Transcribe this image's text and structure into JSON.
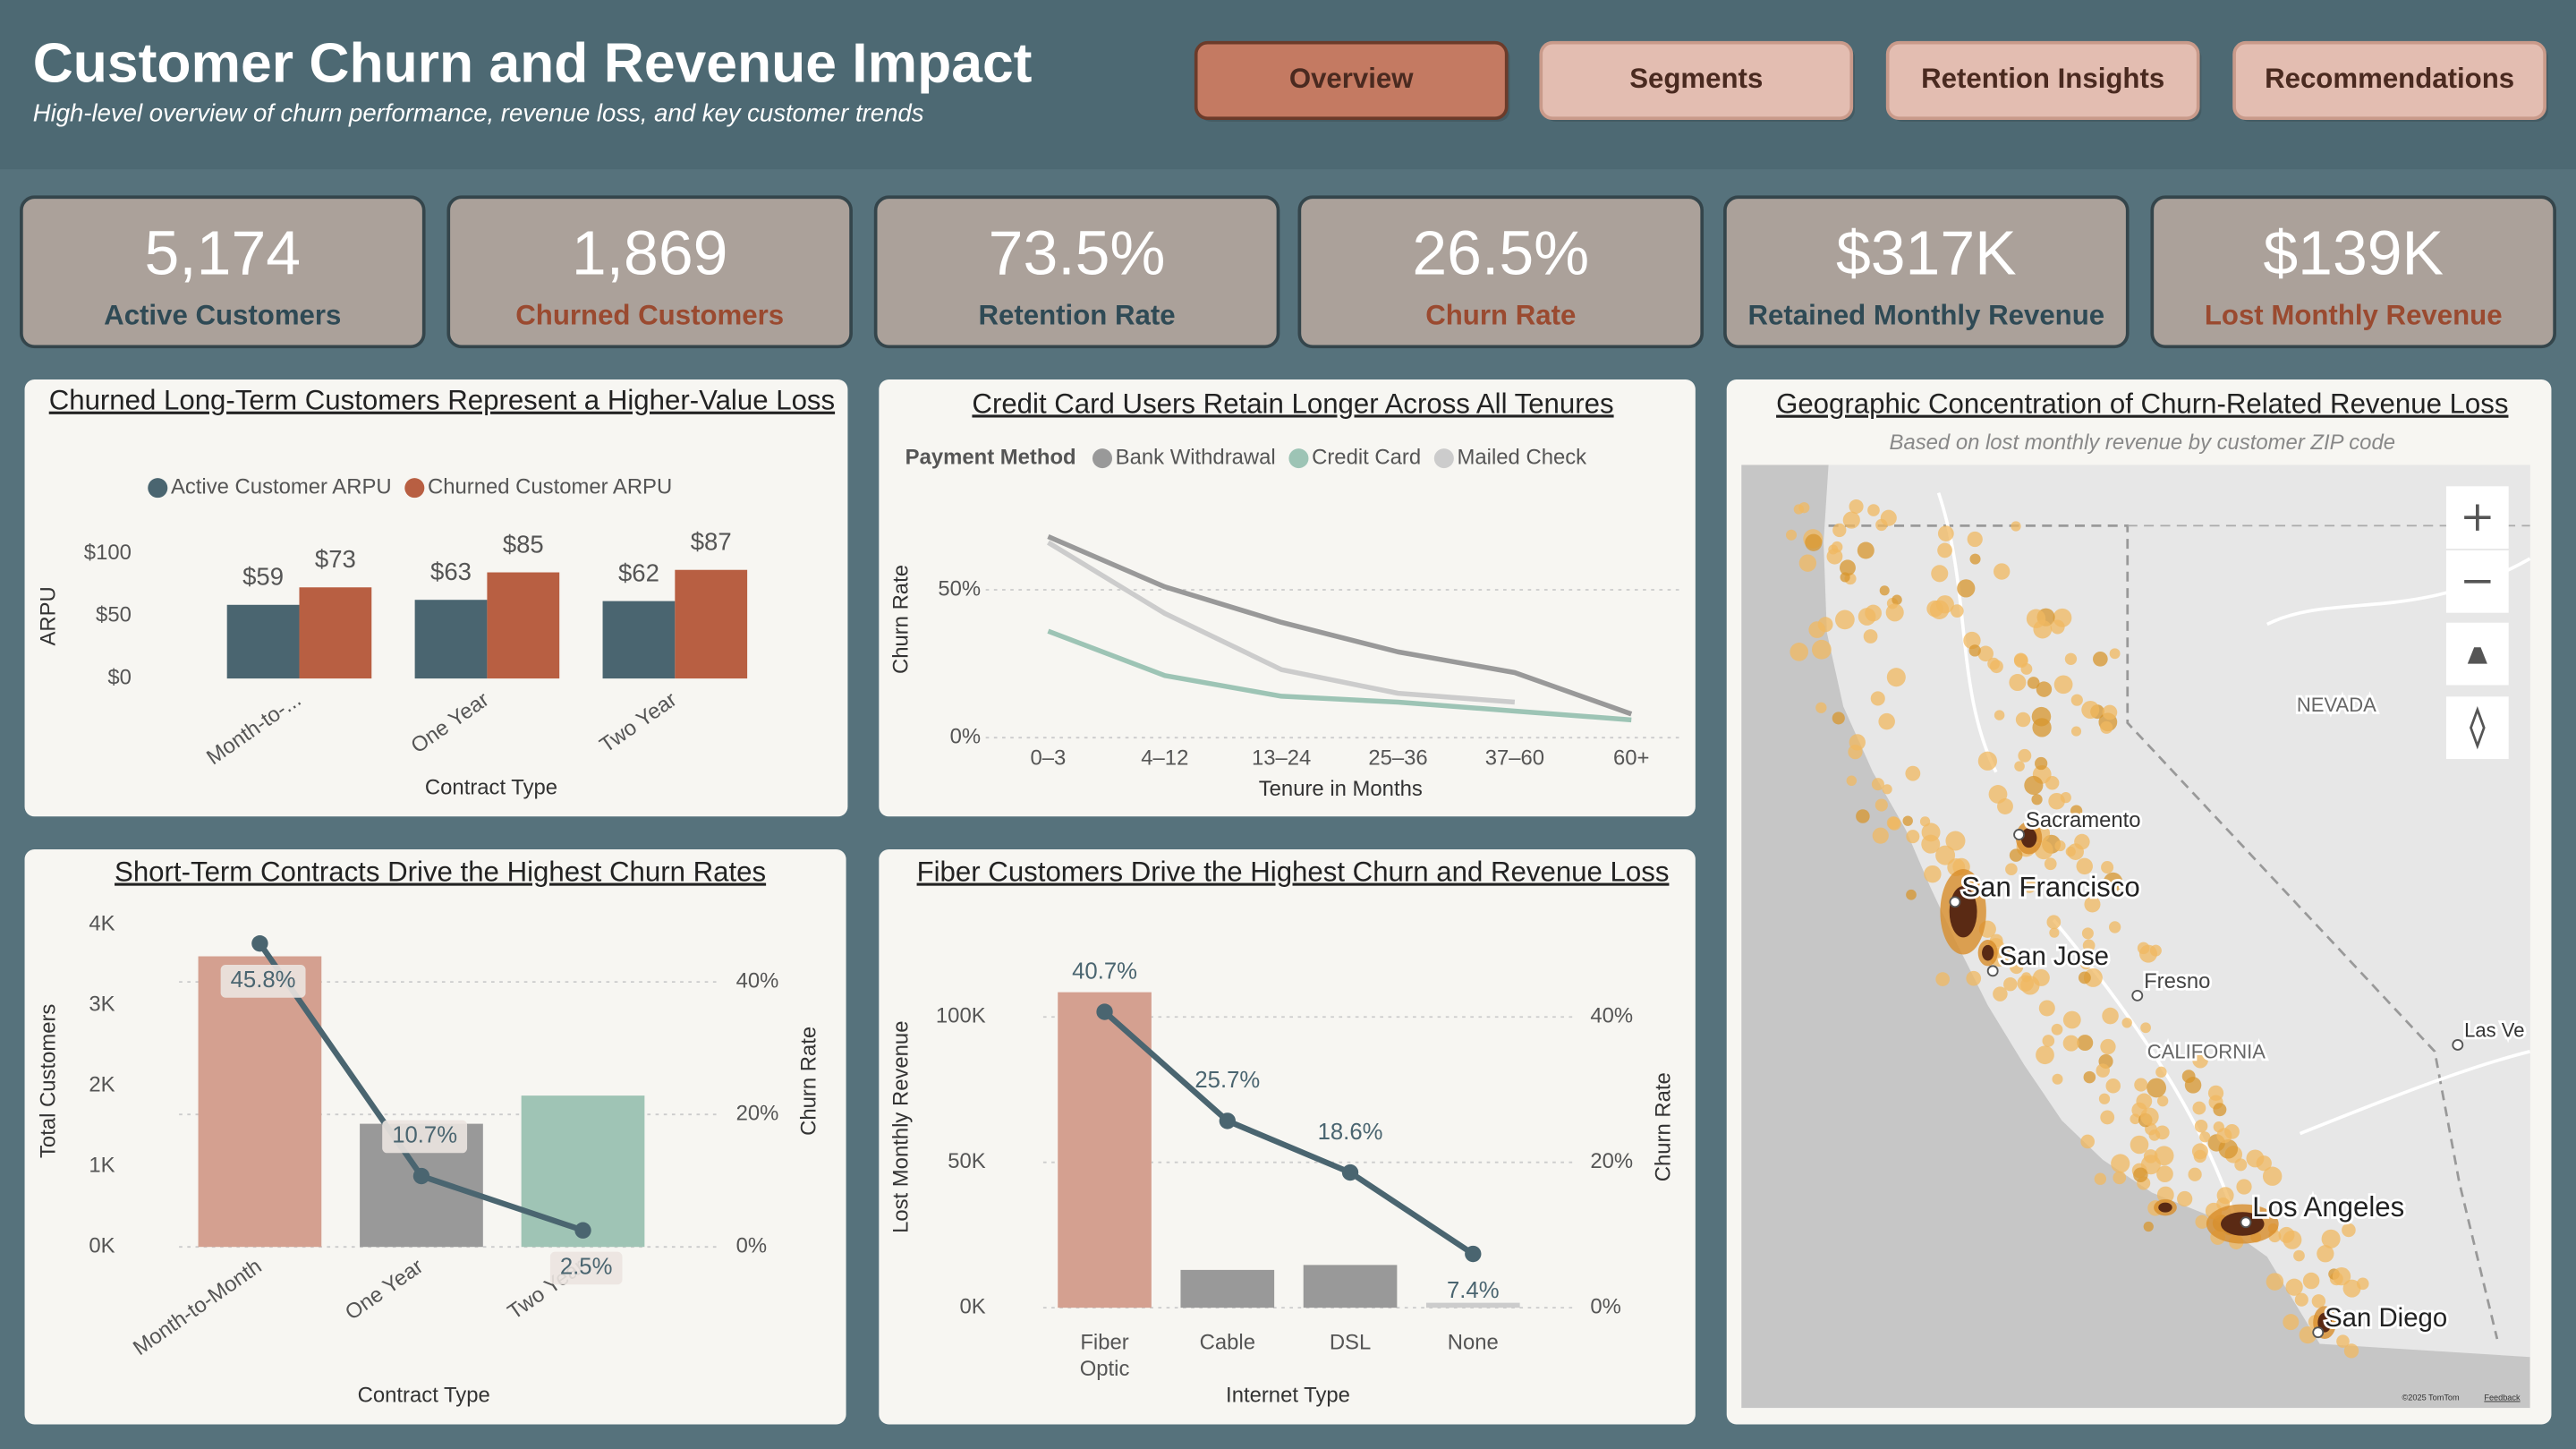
{
  "header": {
    "title": "Customer Churn and Revenue Impact",
    "subtitle": "High-level overview of churn performance, revenue loss, and key customer trends"
  },
  "nav": [
    "Overview",
    "Segments",
    "Retention Insights",
    "Recommendations"
  ],
  "kpis": [
    {
      "value": "5,174",
      "label": "Active Customers"
    },
    {
      "value": "1,869",
      "label": "Churned Customers"
    },
    {
      "value": "73.5%",
      "label": "Retention Rate"
    },
    {
      "value": "26.5%",
      "label": "Churn Rate"
    },
    {
      "value": "$317K",
      "label": "Retained Monthly Revenue"
    },
    {
      "value": "$139K",
      "label": "Lost Monthly Revenue"
    }
  ],
  "chart_data": [
    {
      "type": "grouped_bar",
      "title": "Churned Long-Term Customers Represent a Higher-Value Loss",
      "x_label": "Contract Type",
      "y_label": "ARPU",
      "categories": [
        "Month-to-...",
        "One Year",
        "Two Year"
      ],
      "series": [
        {
          "name": "Active Customer ARPU",
          "color": "#4a6570",
          "values": [
            59,
            63,
            62
          ],
          "value_labels": [
            "$59",
            "$63",
            "$62"
          ]
        },
        {
          "name": "Churned Customer ARPU",
          "color": "#b85f42",
          "values": [
            73,
            85,
            87
          ],
          "value_labels": [
            "$73",
            "$85",
            "$87"
          ]
        }
      ],
      "ylim": [
        0,
        100
      ],
      "yticks": [
        {
          "value": 0,
          "label": "$0"
        },
        {
          "value": 50,
          "label": "$50"
        },
        {
          "value": 100,
          "label": "$100"
        }
      ],
      "grid": false,
      "legend": "top"
    },
    {
      "type": "line",
      "title": "Credit Card Users Retain Longer Across All Tenures",
      "legend_title": "Payment Method",
      "x_label": "Tenure in Months",
      "y_label": "Churn Rate",
      "categories": [
        "0–3",
        "4–12",
        "13–24",
        "25–36",
        "37–60",
        "60+"
      ],
      "series": [
        {
          "name": "Bank Withdrawal",
          "color": "#999999",
          "values": [
            68,
            51,
            39,
            29,
            22,
            8
          ]
        },
        {
          "name": "Credit Card",
          "color": "#9dc4b5",
          "values": [
            36,
            21,
            14,
            12,
            9,
            6
          ]
        },
        {
          "name": "Mailed Check",
          "color": "#cccccc",
          "values": [
            66,
            42,
            23,
            15,
            12,
            null
          ]
        }
      ],
      "ylim": [
        0,
        75
      ],
      "yticks": [
        {
          "value": 0,
          "label": "0%"
        },
        {
          "value": 50,
          "label": "50%"
        }
      ],
      "grid": true,
      "legend": "top"
    },
    {
      "type": "bar_line",
      "title": "Short-Term Contracts Drive the Highest Churn Rates",
      "x_label": "Contract Type",
      "y_label": "Total Customers",
      "y2_label": "Churn Rate",
      "categories": [
        "Month-to-Month",
        "One Year",
        "Two Year"
      ],
      "series": [
        {
          "colors": [
            "#d4a090",
            "#999999",
            "#9fc4b5"
          ],
          "values": [
            3610,
            1530,
            1880
          ]
        },
        {
          "color": "#4a6570",
          "axis": "y2",
          "values": [
            45.8,
            10.7,
            2.5
          ],
          "value_labels": [
            "45.8%",
            "10.7%",
            "2.5%"
          ]
        }
      ],
      "ylim": [
        0,
        4000
      ],
      "yticks": [
        {
          "value": 0,
          "label": "0K"
        },
        {
          "value": 1000,
          "label": "1K"
        },
        {
          "value": 2000,
          "label": "2K"
        },
        {
          "value": 3000,
          "label": "3K"
        },
        {
          "value": 4000,
          "label": "4K"
        }
      ],
      "y2lim": [
        0,
        48.6
      ],
      "y2ticks": [
        {
          "value": 0,
          "label": "0%"
        },
        {
          "value": 20,
          "label": "20%"
        },
        {
          "value": 40,
          "label": "40%"
        }
      ],
      "grid": "y2"
    },
    {
      "type": "bar_line",
      "title": "Fiber Customers Drive the Highest Churn and Revenue Loss",
      "x_label": "Internet Type",
      "y_label": "Lost Monthly Revenue",
      "y2_label": "Churn Rate",
      "categories": [
        "Fiber Optic",
        "Cable",
        "DSL",
        "None"
      ],
      "series": [
        {
          "colors": [
            "#d4a090",
            "#999999",
            "#999999",
            "#cccccc"
          ],
          "values": [
            108500,
            13000,
            14700,
            1700
          ]
        },
        {
          "color": "#4a6570",
          "axis": "y2",
          "values": [
            40.7,
            25.7,
            18.6,
            7.4
          ],
          "value_labels": [
            "40.7%",
            "25.7%",
            "18.6%",
            "7.4%"
          ]
        }
      ],
      "ylim": [
        0,
        120000
      ],
      "yticks": [
        {
          "value": 0,
          "label": "0K"
        },
        {
          "value": 50000,
          "label": "50K"
        },
        {
          "value": 100000,
          "label": "100K"
        }
      ],
      "y2lim": [
        0,
        48
      ],
      "y2ticks": [
        {
          "value": 0,
          "label": "0%"
        },
        {
          "value": 20,
          "label": "20%"
        },
        {
          "value": 40,
          "label": "40%"
        }
      ],
      "grid": "y2"
    }
  ],
  "map": {
    "title": "Geographic Concentration of Churn-Related Revenue Loss",
    "subtitle": "Based on lost monthly revenue by customer ZIP code",
    "places": [
      "Sacramento",
      "San Francisco",
      "San Jose",
      "Fresno",
      "CALIFORNIA",
      "NEVADA",
      "Los Angeles",
      "San Diego",
      "Las Ve"
    ],
    "attribution": "©2025 TomTom",
    "feedback": "Feedback"
  }
}
